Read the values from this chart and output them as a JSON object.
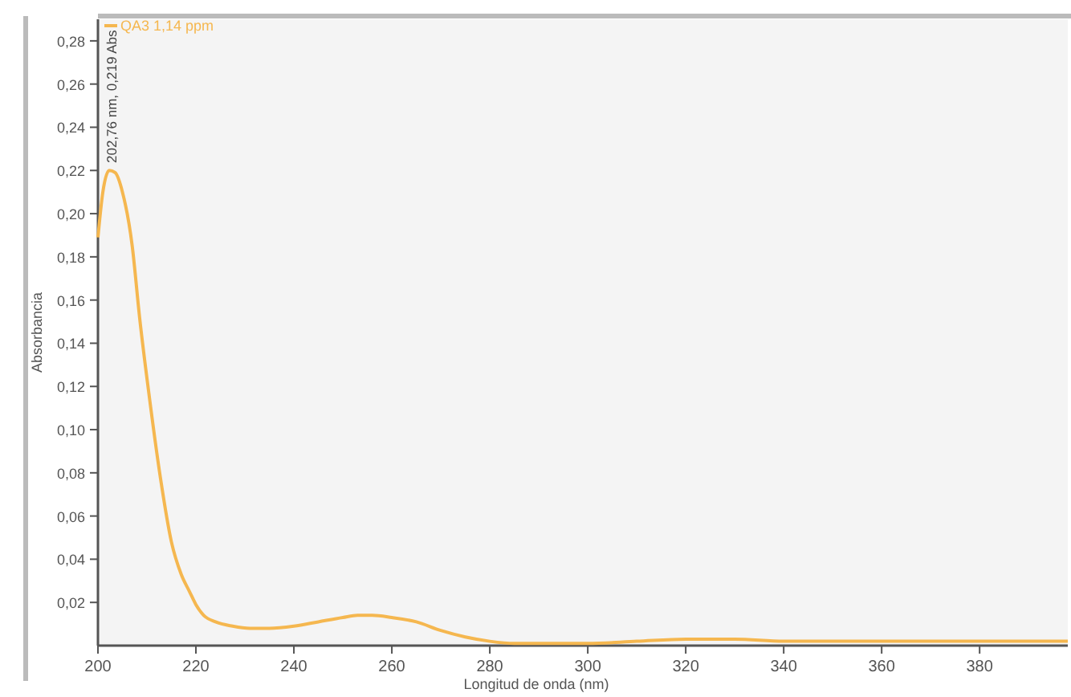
{
  "chart_data": {
    "type": "line",
    "xlabel": "Longitud de onda (nm)",
    "ylabel": "Absorbancia",
    "series": [
      {
        "name": "QA3 1,14 ppm",
        "color": "#f5b74f",
        "x": [
          200,
          201,
          202.3,
          203.5,
          205,
          207,
          208.5,
          210.5,
          212.8,
          215,
          217,
          218.7,
          220,
          221.6,
          224,
          227.5,
          231,
          235,
          240,
          245,
          250,
          253,
          256,
          260,
          265,
          270,
          275,
          280,
          285,
          290,
          300,
          310,
          320,
          330,
          340,
          350,
          360,
          370,
          380,
          390,
          398
        ],
        "values": [
          0.189,
          0.21,
          0.22,
          0.219,
          0.21,
          0.185,
          0.152,
          0.115,
          0.077,
          0.048,
          0.033,
          0.025,
          0.019,
          0.014,
          0.011,
          0.009,
          0.008,
          0.008,
          0.009,
          0.011,
          0.013,
          0.014,
          0.014,
          0.013,
          0.011,
          0.007,
          0.004,
          0.002,
          0.001,
          0.001,
          0.001,
          0.002,
          0.003,
          0.003,
          0.002,
          0.002,
          0.002,
          0.002,
          0.002,
          0.002,
          0.002
        ]
      }
    ],
    "annotations": [
      {
        "text": "202,76 nm, 0,219 Abs",
        "x": 202.76,
        "y": 0.219
      }
    ],
    "xlim": [
      200,
      398
    ],
    "xticks": [
      200,
      220,
      240,
      260,
      280,
      300,
      320,
      340,
      360,
      380
    ],
    "ylim": [
      0,
      0.29
    ],
    "yticks": [
      {
        "value": 0.02,
        "label": "0,02"
      },
      {
        "value": 0.04,
        "label": "0,04"
      },
      {
        "value": 0.06,
        "label": "0,06"
      },
      {
        "value": 0.08,
        "label": "0,08"
      },
      {
        "value": 0.1,
        "label": "0,10"
      },
      {
        "value": 0.12,
        "label": "0,12"
      },
      {
        "value": 0.14,
        "label": "0,14"
      },
      {
        "value": 0.16,
        "label": "0,16"
      },
      {
        "value": 0.18,
        "label": "0,18"
      },
      {
        "value": 0.2,
        "label": "0,20"
      },
      {
        "value": 0.22,
        "label": "0,22"
      },
      {
        "value": 0.24,
        "label": "0,24"
      },
      {
        "value": 0.26,
        "label": "0,26"
      },
      {
        "value": 0.28,
        "label": "0,28"
      }
    ],
    "legend": "top left",
    "grid": false
  }
}
